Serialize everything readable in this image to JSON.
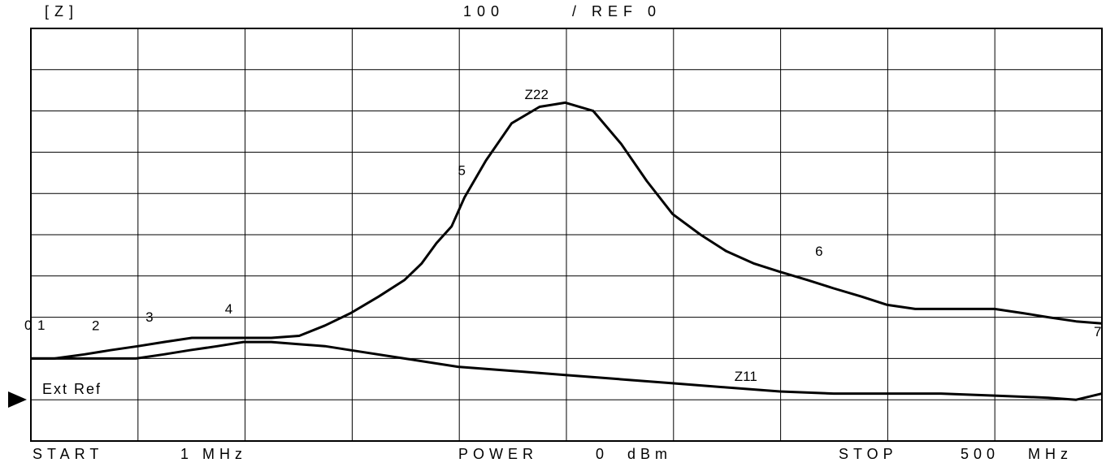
{
  "header": {
    "parameter": "[Z]",
    "scale": "100",
    "ref": "/ REF 0"
  },
  "footer": {
    "start_label": "START",
    "start_value": "1 MHz",
    "power_label": "POWER",
    "power_value": "0 dBm",
    "stop_label": "STOP",
    "stop_value": "500 MHz"
  },
  "ref_label": "Ext Ref",
  "ref_marker_icon": "triangle-right-icon",
  "chart_data": {
    "type": "line",
    "title": "",
    "xlabel": "",
    "ylabel": "",
    "xlim": [
      1,
      500
    ],
    "ylim": [
      -100,
      900
    ],
    "grid": true,
    "x_divisions": 10,
    "y_divisions": 10,
    "reference_level": 0,
    "scale_per_division": 100,
    "series": [
      {
        "name": "Z22",
        "x": [
          1,
          12,
          26,
          38,
          51,
          63,
          76,
          88,
          101,
          113,
          126,
          138,
          150,
          163,
          175,
          183,
          190,
          197,
          203,
          213,
          225,
          238,
          250,
          263,
          276,
          288,
          300,
          313,
          325,
          338,
          350,
          363,
          375,
          388,
          400,
          413,
          425,
          438,
          450,
          463,
          475,
          488,
          500
        ],
        "values": [
          100,
          100,
          110,
          120,
          130,
          140,
          150,
          150,
          150,
          150,
          155,
          180,
          210,
          250,
          290,
          330,
          380,
          420,
          490,
          580,
          670,
          710,
          720,
          700,
          620,
          530,
          450,
          400,
          360,
          330,
          310,
          290,
          270,
          250,
          230,
          220,
          220,
          220,
          220,
          210,
          200,
          190,
          185
        ]
      },
      {
        "name": "Z11",
        "x": [
          1,
          25,
          50,
          63,
          75,
          88,
          100,
          113,
          125,
          138,
          150,
          175,
          200,
          225,
          250,
          275,
          300,
          325,
          350,
          375,
          400,
          425,
          450,
          475,
          488,
          500
        ],
        "values": [
          100,
          100,
          100,
          110,
          120,
          130,
          140,
          140,
          135,
          130,
          120,
          100,
          80,
          70,
          60,
          50,
          40,
          30,
          20,
          15,
          15,
          15,
          10,
          5,
          0,
          15
        ]
      }
    ],
    "markers": [
      {
        "label": "1",
        "x": 1
      },
      {
        "label": "2",
        "x": 26
      },
      {
        "label": "3",
        "x": 51
      },
      {
        "label": "4",
        "x": 88
      },
      {
        "label": "5",
        "x": 203
      },
      {
        "label": "6",
        "x": 363
      },
      {
        "label": "7",
        "x": 500
      }
    ],
    "trace_labels": [
      "Z22",
      "Z11"
    ],
    "stray_label": "0"
  }
}
